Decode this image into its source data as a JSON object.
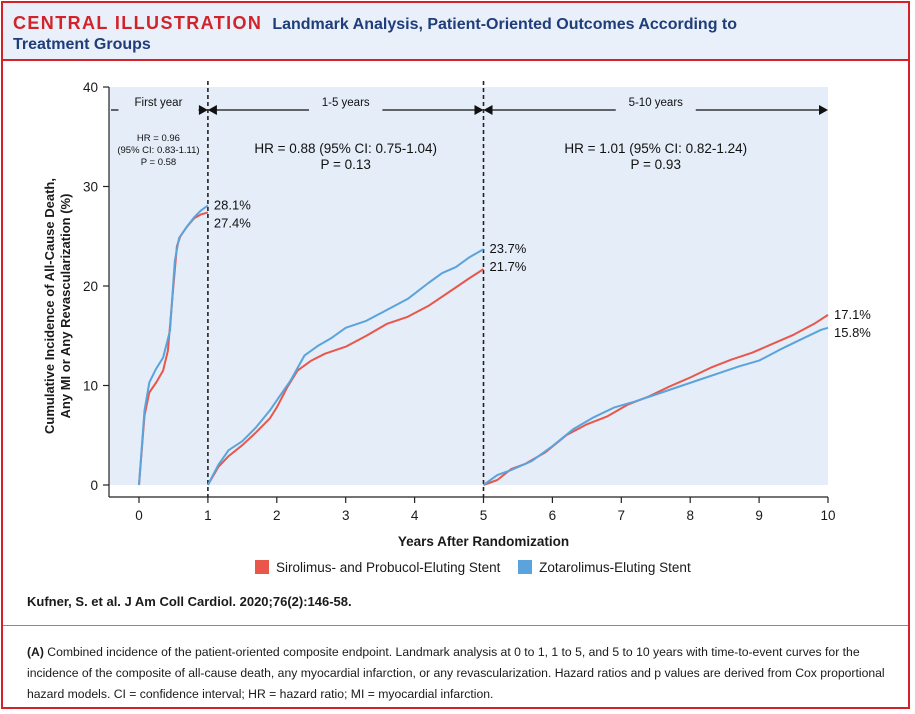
{
  "header": {
    "kicker": "CENTRAL ILLUSTRATION",
    "title_line1": "Landmark Analysis, Patient-Oriented Outcomes According to",
    "title_line2": "Treatment Groups"
  },
  "citation": "Kufner, S. et al. J Am Coll Cardiol. 2020;76(2):146-58.",
  "caption": {
    "lead": "(A)",
    "text": " Combined incidence of the patient-oriented composite endpoint. Landmark analysis at 0 to 1, 1 to 5, and 5 to 10 years with time-to-event curves for the incidence of the composite of all-cause death, any myocardial infarction, or any revascularization. Hazard ratios and p values are derived from Cox proportional hazard models. CI = confidence interval; HR = hazard ratio; MI = myocardial infarction."
  },
  "colors": {
    "sirolimus": "#e8574a",
    "zotarolimus": "#5aa3dc",
    "panel_bg": "#e4edf8",
    "title_blue": "#1f3d7a",
    "frame_red": "#d2232a"
  },
  "chart_data": {
    "type": "line",
    "xlabel": "Years After Randomization",
    "ylabel_line1": "Cumulative Incidence of All-Cause Death,",
    "ylabel_line2": "Any MI or Any Revascularization (%)",
    "xlim": [
      0,
      10
    ],
    "ylim": [
      0,
      40
    ],
    "xticks": [
      "0",
      "1",
      "2",
      "3",
      "4",
      "5",
      "6",
      "7",
      "8",
      "9",
      "10"
    ],
    "yticks": [
      "0",
      "10",
      "20",
      "30",
      "40"
    ],
    "landmarks": [
      1,
      5
    ],
    "panels": [
      {
        "label": "First year",
        "from": 0,
        "to": 1,
        "hr_line1": "HR = 0.96",
        "hr_line2": "(95% CI: 0.83-1.11)",
        "p": "P = 0.58"
      },
      {
        "label": "1-5 years",
        "from": 1,
        "to": 5,
        "hr_line1": "HR = 0.88 (95% CI: 0.75-1.04)",
        "hr_line2": "",
        "p": "P = 0.13"
      },
      {
        "label": "5-10 years",
        "from": 5,
        "to": 10,
        "hr_line1": "HR = 1.01 (95% CI: 0.82-1.24)",
        "hr_line2": "",
        "p": "P = 0.93"
      }
    ],
    "series": [
      {
        "name": "Sirolimus- and Probucol-Eluting Stent",
        "color": "#e8574a",
        "segments": [
          [
            [
              0,
              0
            ],
            [
              0.08,
              7
            ],
            [
              0.15,
              9.3
            ],
            [
              0.25,
              10.3
            ],
            [
              0.35,
              11.5
            ],
            [
              0.42,
              13.5
            ],
            [
              0.5,
              20
            ],
            [
              0.55,
              24
            ],
            [
              0.6,
              25
            ],
            [
              0.7,
              26
            ],
            [
              0.8,
              26.8
            ],
            [
              0.9,
              27.2
            ],
            [
              1,
              27.4
            ]
          ],
          [
            [
              1,
              0
            ],
            [
              1.15,
              1.8
            ],
            [
              1.3,
              2.9
            ],
            [
              1.5,
              4
            ],
            [
              1.7,
              5.3
            ],
            [
              1.9,
              6.7
            ],
            [
              2.0,
              7.8
            ],
            [
              2.15,
              9.8
            ],
            [
              2.3,
              11.5
            ],
            [
              2.5,
              12.5
            ],
            [
              2.7,
              13.2
            ],
            [
              3.0,
              13.9
            ],
            [
              3.3,
              15
            ],
            [
              3.6,
              16.2
            ],
            [
              3.9,
              16.9
            ],
            [
              4.2,
              18
            ],
            [
              4.5,
              19.4
            ],
            [
              4.8,
              20.8
            ],
            [
              5,
              21.7
            ]
          ],
          [
            [
              5,
              0
            ],
            [
              5.2,
              0.5
            ],
            [
              5.4,
              1.6
            ],
            [
              5.6,
              2.1
            ],
            [
              5.9,
              3.3
            ],
            [
              6.2,
              5
            ],
            [
              6.5,
              6.1
            ],
            [
              6.8,
              6.9
            ],
            [
              7.1,
              8.1
            ],
            [
              7.4,
              8.9
            ],
            [
              7.7,
              9.9
            ],
            [
              8.0,
              10.8
            ],
            [
              8.3,
              11.8
            ],
            [
              8.6,
              12.6
            ],
            [
              8.9,
              13.3
            ],
            [
              9.2,
              14.2
            ],
            [
              9.5,
              15.1
            ],
            [
              9.8,
              16.2
            ],
            [
              10,
              17.1
            ]
          ]
        ],
        "end_labels": [
          "27.4%",
          "21.7%",
          "17.1%"
        ]
      },
      {
        "name": "Zotarolimus-Eluting Stent",
        "color": "#5aa3dc",
        "segments": [
          [
            [
              0,
              0
            ],
            [
              0.08,
              7.5
            ],
            [
              0.15,
              10.3
            ],
            [
              0.25,
              11.7
            ],
            [
              0.35,
              12.8
            ],
            [
              0.45,
              15.5
            ],
            [
              0.52,
              22.5
            ],
            [
              0.58,
              24.8
            ],
            [
              0.7,
              26
            ],
            [
              0.8,
              26.9
            ],
            [
              0.9,
              27.6
            ],
            [
              1,
              28.1
            ]
          ],
          [
            [
              1,
              0
            ],
            [
              1.15,
              2
            ],
            [
              1.3,
              3.5
            ],
            [
              1.5,
              4.4
            ],
            [
              1.7,
              5.8
            ],
            [
              1.9,
              7.5
            ],
            [
              2.05,
              9
            ],
            [
              2.2,
              10.5
            ],
            [
              2.4,
              13
            ],
            [
              2.6,
              14
            ],
            [
              2.8,
              14.8
            ],
            [
              3.0,
              15.8
            ],
            [
              3.3,
              16.5
            ],
            [
              3.6,
              17.6
            ],
            [
              3.9,
              18.7
            ],
            [
              4.2,
              20.3
            ],
            [
              4.4,
              21.3
            ],
            [
              4.6,
              21.9
            ],
            [
              4.8,
              22.9
            ],
            [
              5,
              23.7
            ]
          ],
          [
            [
              5,
              0
            ],
            [
              5.2,
              1
            ],
            [
              5.4,
              1.5
            ],
            [
              5.7,
              2.4
            ],
            [
              6.0,
              3.9
            ],
            [
              6.3,
              5.6
            ],
            [
              6.6,
              6.8
            ],
            [
              6.9,
              7.8
            ],
            [
              7.2,
              8.4
            ],
            [
              7.5,
              9.1
            ],
            [
              7.8,
              9.8
            ],
            [
              8.1,
              10.5
            ],
            [
              8.4,
              11.2
            ],
            [
              8.7,
              11.9
            ],
            [
              9.0,
              12.5
            ],
            [
              9.3,
              13.6
            ],
            [
              9.6,
              14.6
            ],
            [
              9.9,
              15.6
            ],
            [
              10,
              15.8
            ]
          ]
        ],
        "end_labels": [
          "28.1%",
          "23.7%",
          "15.8%"
        ]
      }
    ]
  }
}
